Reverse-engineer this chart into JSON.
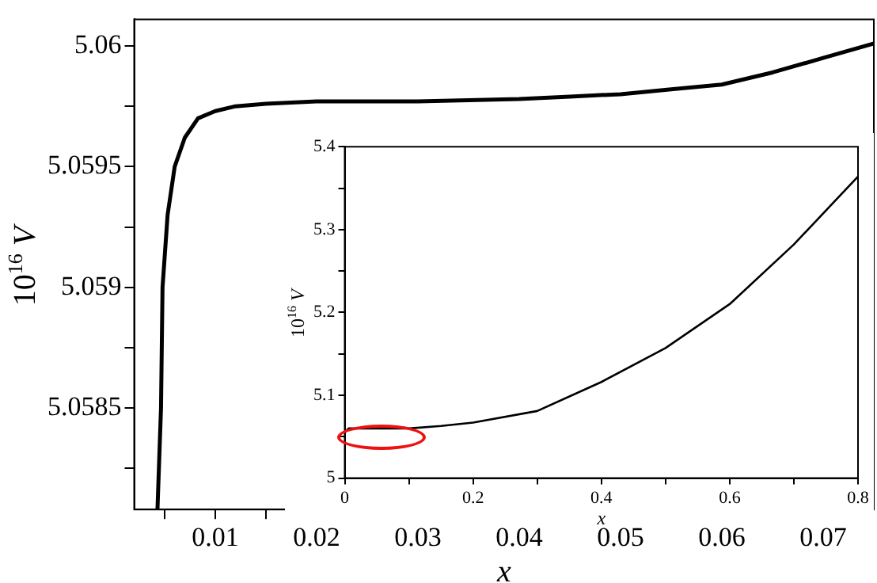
{
  "chart_data": [
    {
      "type": "line",
      "xlabel": "x",
      "ylabel": "10$^{16}$ V",
      "xlim": [
        0.002,
        0.075
      ],
      "ylim": [
        5.05808,
        5.06011
      ],
      "xticks": [
        {
          "value": 0.005,
          "label": null
        },
        0.01,
        {
          "value": 0.015,
          "label": null
        },
        0.02,
        {
          "value": 0.025,
          "label": null
        },
        0.03,
        {
          "value": 0.035,
          "label": null
        },
        0.04,
        {
          "value": 0.045,
          "label": null
        },
        0.05,
        {
          "value": 0.055,
          "label": null
        },
        0.06,
        {
          "value": 0.065,
          "label": null
        },
        0.07
      ],
      "yticks": [
        {
          "value": 5.05825,
          "label": null
        },
        5.0585,
        {
          "value": 5.05875,
          "label": null
        },
        5.059,
        {
          "value": 5.05925,
          "label": null
        },
        5.0595,
        {
          "value": 5.05975,
          "label": null
        },
        5.06
      ],
      "grid": false,
      "legend": false,
      "marker": "none",
      "line_style": "solid",
      "series": [
        {
          "color": "#000000",
          "x": [
            0.0043,
            0.00465,
            0.0048,
            0.0053,
            0.006,
            0.007,
            0.0083,
            0.01,
            0.012,
            0.015,
            0.02,
            0.03,
            0.04,
            0.045,
            0.05,
            0.055,
            0.06,
            0.065,
            0.07,
            0.075
          ],
          "values": [
            5.05808,
            5.0585,
            5.059,
            5.0593,
            5.0595,
            5.05962,
            5.0597,
            5.05973,
            5.05975,
            5.05976,
            5.05977,
            5.05977,
            5.05978,
            5.05979,
            5.0598,
            5.05982,
            5.05984,
            5.05989,
            5.05995,
            5.06001
          ]
        }
      ]
    },
    {
      "type": "line",
      "xlabel": "x",
      "ylabel": "10$^{16}$ V",
      "xlim": [
        0,
        0.8
      ],
      "ylim": [
        5,
        5.4
      ],
      "xticks": [
        0,
        {
          "value": 0.1,
          "label": null
        },
        0.2,
        {
          "value": 0.3,
          "label": null
        },
        0.4,
        {
          "value": 0.5,
          "label": null
        },
        0.6,
        {
          "value": 0.7,
          "label": null
        },
        0.8
      ],
      "yticks": [
        5,
        {
          "value": 5.05,
          "label": null
        },
        5.1,
        {
          "value": 5.15,
          "label": null
        },
        5.2,
        {
          "value": 5.25,
          "label": null
        },
        5.3,
        {
          "value": 5.35,
          "label": null
        },
        5.4
      ],
      "grid": false,
      "legend": false,
      "marker": "none",
      "line_style": "solid",
      "series": [
        {
          "color": "#000000",
          "x": [
            0,
            0.006,
            0.1,
            0.15,
            0.2,
            0.3,
            0.4,
            0.5,
            0.6,
            0.7,
            0.8
          ],
          "values": [
            5.055,
            5.06,
            5.06,
            5.063,
            5.067,
            5.081,
            5.116,
            5.157,
            5.21,
            5.282,
            5.364
          ]
        }
      ]
    }
  ]
}
